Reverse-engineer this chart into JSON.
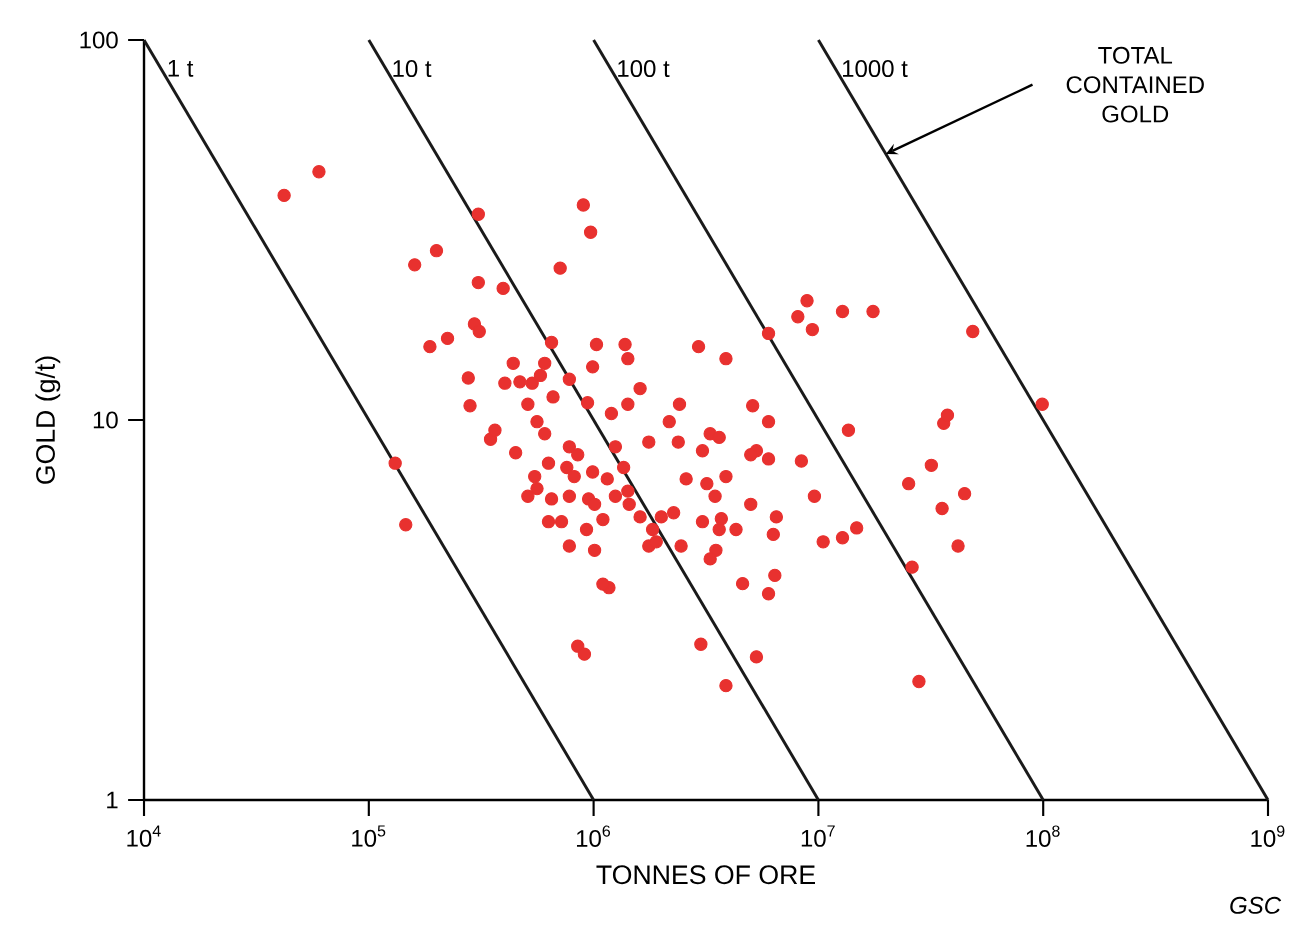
{
  "chart_data": {
    "type": "scatter",
    "xlabel": "TONNES OF ORE",
    "ylabel": "GOLD (g/t)",
    "log": "xy",
    "marker": "circle",
    "xlim": [
      10000,
      1000000000
    ],
    "ylim": [
      1,
      100
    ],
    "xticks": [
      {
        "value": 10000,
        "label": "10$^{4}$"
      },
      {
        "value": 100000,
        "label": "10$^{5}$"
      },
      {
        "value": 1000000,
        "label": "10$^{6}$"
      },
      {
        "value": 10000000,
        "label": "10$^{7}$"
      },
      {
        "value": 100000000,
        "label": "10$^{8}$"
      },
      {
        "value": 1000000000,
        "label": "10$^{9}$"
      }
    ],
    "yticks": [
      1,
      10,
      100
    ],
    "annotations": [
      "TOTAL CONTAINED GOLD",
      "GSC"
    ],
    "series": [
      {
        "type": "line",
        "name": "1 t",
        "color": "#1a1a1a",
        "marker": "none",
        "x": [
          10000.0,
          1000000.0
        ],
        "values": [
          100,
          1
        ]
      },
      {
        "type": "line",
        "name": "10 t",
        "color": "#1a1a1a",
        "marker": "none",
        "x": [
          100000.0,
          10000000.0
        ],
        "values": [
          100,
          1
        ]
      },
      {
        "type": "line",
        "name": "100 t",
        "color": "#1a1a1a",
        "marker": "none",
        "x": [
          1000000.0,
          100000000.0
        ],
        "values": [
          100,
          1
        ]
      },
      {
        "type": "line",
        "name": "1000 t",
        "color": "#1a1a1a",
        "marker": "none",
        "x": [
          10000000.0,
          1000000000.0
        ],
        "values": [
          100,
          1
        ]
      },
      {
        "color": "#e8312f",
        "x": [
          42000.0,
          60000.0,
          307000.0,
          900000.0,
          970000.0,
          160000.0,
          200000.0,
          710000.0,
          307000.0,
          396000.0,
          187000.0,
          224000.0,
          295000.0,
          310000.0,
          277000.0,
          282000.0,
          348000.0,
          131000.0,
          146000.0,
          439000.0,
          403000.0,
          470000.0,
          533000.0,
          606000.0,
          650000.0,
          780000.0,
          990000.0,
          1030000.0,
          1380000.0,
          1420000.0,
          1610000.0,
          1420000.0,
          1200000.0,
          940000.0,
          510000.0,
          560000.0,
          450000.0,
          606000.0,
          630000.0,
          780000.0,
          760000.0,
          820000.0,
          850000.0,
          547000.0,
          560000.0,
          510000.0,
          650000.0,
          630000.0,
          720000.0,
          780000.0,
          930000.0,
          950000.0,
          1010000.0,
          1100000.0,
          1250000.0,
          1360000.0,
          1420000.0,
          1440000.0,
          1610000.0,
          1830000.0,
          1760000.0,
          1900000.0,
          1760000.0,
          2170000.0,
          2410000.0,
          2380000.0,
          2580000.0,
          2270000.0,
          2450000.0,
          3050000.0,
          3190000.0,
          3050000.0,
          3300000.0,
          2930000.0,
          3880000.0,
          3620000.0,
          3880000.0,
          3700000.0,
          4300000.0,
          3500000.0,
          3300000.0,
          4600000.0,
          5100000.0,
          5300000.0,
          6000000.0,
          6000000.0,
          5000000.0,
          6500000.0,
          6300000.0,
          6400000.0,
          6000000.0,
          5300000.0,
          3000000.0,
          3880000.0,
          6000000.0,
          8100000.0,
          8900000.0,
          9400000.0,
          12800000.0,
          17500000.0,
          13600000.0,
          8400000.0,
          9600000.0,
          10500000.0,
          12800000.0,
          14800000.0,
          25200000.0,
          31800000.0,
          36100000.0,
          37500000.0,
          35500000.0,
          44700000.0,
          41800000.0,
          26100000.0,
          28000000.0,
          48600000.0,
          99000000.0,
          1170000.0,
          1100000.0,
          850000.0,
          910000.0,
          1150000.0,
          1010000.0,
          1250000.0,
          2000000.0,
          990000.0,
          660000.0,
          580000.0,
          364000.0,
          780000.0,
          3620000.0,
          3470000.0,
          5000000.0
        ],
        "values": [
          39,
          45,
          34.8,
          36.8,
          31.2,
          25.6,
          27.9,
          25.1,
          23,
          22.2,
          15.6,
          16.4,
          17.9,
          17.1,
          12.9,
          10.9,
          8.9,
          7.7,
          5.3,
          14.1,
          12.5,
          12.6,
          12.5,
          14.1,
          16,
          12.8,
          13.8,
          15.8,
          15.8,
          14.5,
          12.1,
          11,
          10.4,
          11.1,
          11,
          9.9,
          8.2,
          9.2,
          7.7,
          8.5,
          7.5,
          7.1,
          8.1,
          7.1,
          6.6,
          6.3,
          6.2,
          5.4,
          5.4,
          4.66,
          5.15,
          6.2,
          4.54,
          5.47,
          8.5,
          7.5,
          6.5,
          6,
          5.56,
          5.15,
          4.66,
          4.78,
          8.75,
          9.9,
          11,
          8.75,
          7,
          5.7,
          4.66,
          5.4,
          6.8,
          8.3,
          9.2,
          15.6,
          14.5,
          9,
          7.1,
          5.5,
          5.15,
          4.54,
          4.31,
          3.71,
          10.9,
          8.3,
          9.9,
          7.9,
          6,
          5.56,
          5,
          3.9,
          3.49,
          2.38,
          2.57,
          2,
          16.9,
          18.7,
          20.6,
          17.3,
          19.3,
          19.3,
          9.4,
          7.8,
          6.3,
          4.78,
          4.9,
          5.2,
          6.8,
          7.6,
          9.8,
          10.3,
          5.85,
          6.4,
          4.66,
          4.1,
          2.05,
          17.1,
          11,
          3.62,
          3.7,
          2.54,
          2.42,
          7,
          6,
          6.3,
          5.56,
          7.3,
          11.5,
          13.1,
          9.4,
          6.3,
          5.15,
          6.3,
          8.1
        ]
      }
    ]
  }
}
